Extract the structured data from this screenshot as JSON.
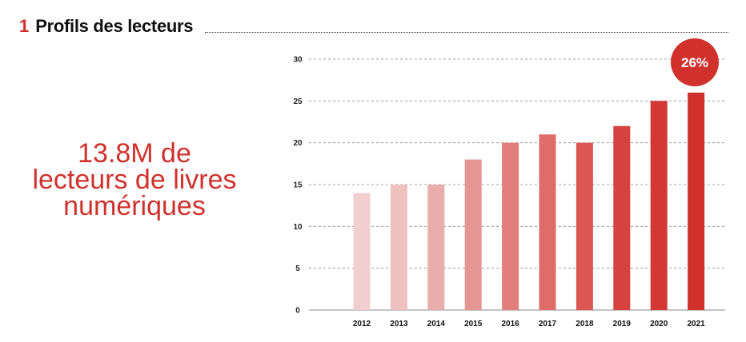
{
  "header": {
    "number": "1",
    "title": "Profils des lecteurs"
  },
  "stat": {
    "line1": "13.8M de",
    "line2": "lecteurs de livres",
    "line3": "numériques"
  },
  "badge": {
    "label": "26%",
    "color": "#d0312d"
  },
  "chart_data": {
    "type": "bar",
    "title": "",
    "xlabel": "",
    "ylabel": "",
    "ylim": [
      0,
      30
    ],
    "yticks": [
      0,
      5,
      10,
      15,
      20,
      25,
      30
    ],
    "grid": true,
    "categories": [
      "2012",
      "2013",
      "2014",
      "2015",
      "2016",
      "2017",
      "2018",
      "2019",
      "2020",
      "2021"
    ],
    "values": [
      14,
      15,
      15,
      18,
      20,
      21,
      20,
      22,
      25,
      26
    ],
    "colors": [
      "#f2cfcf",
      "#eec0bf",
      "#e9aeac",
      "#e59594",
      "#e27f7d",
      "#de6d6a",
      "#da5753",
      "#d6433f",
      "#d33834",
      "#d0312d"
    ]
  }
}
